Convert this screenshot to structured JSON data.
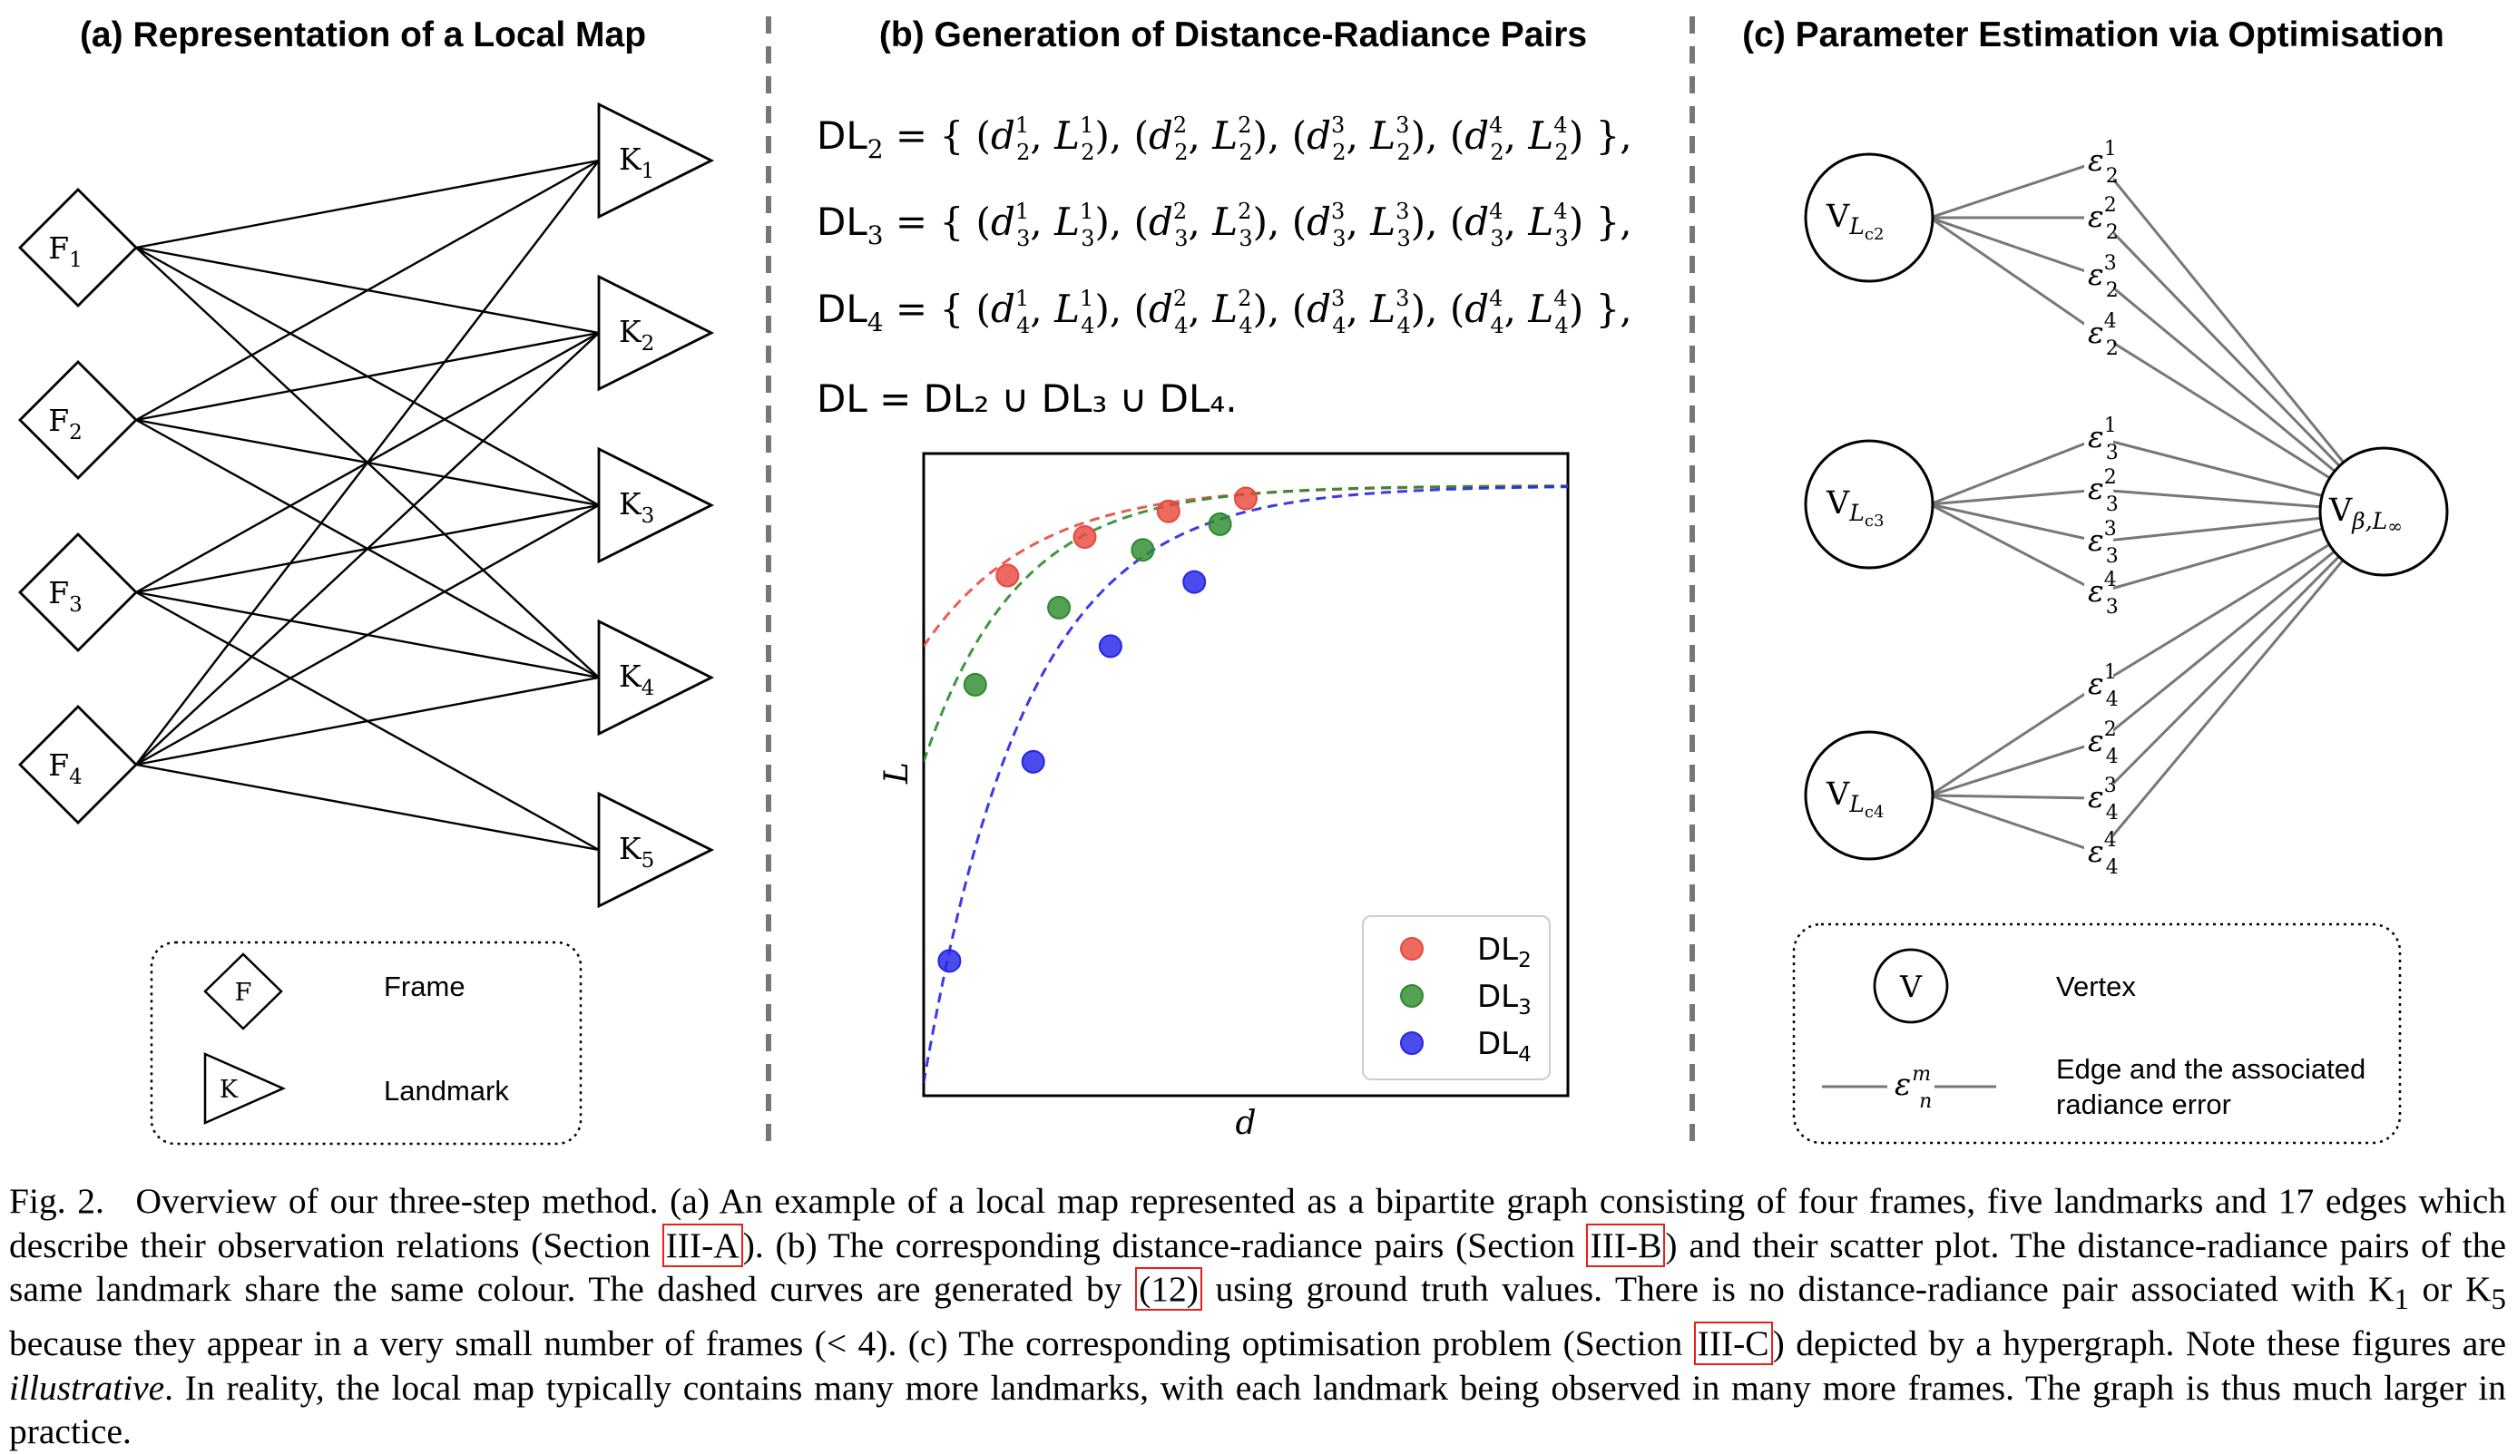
{
  "panel_a": {
    "title": "(a) Representation of a Local Map",
    "frames": [
      "F",
      "F",
      "F",
      "F"
    ],
    "frame_subs": [
      "1",
      "2",
      "3",
      "4"
    ],
    "landmarks": [
      "K",
      "K",
      "K",
      "K",
      "K"
    ],
    "landmark_subs": [
      "1",
      "2",
      "3",
      "4",
      "5"
    ],
    "legend": {
      "frame_symbol": "F",
      "frame_label": "Frame",
      "landmark_symbol": "K",
      "landmark_label": "Landmark"
    }
  },
  "panel_b": {
    "title": "(b) Generation of Distance-Radiance Pairs",
    "equations": [
      {
        "lhs": "DL",
        "sub": "2",
        "idx": "2"
      },
      {
        "lhs": "DL",
        "sub": "3",
        "idx": "3"
      },
      {
        "lhs": "DL",
        "sub": "4",
        "idx": "4"
      }
    ],
    "union_eq": "DL = DL₂ ∪ DL₃ ∪ DL₄."
  },
  "chart_data": {
    "type": "scatter",
    "xlabel": "d",
    "ylabel": "L",
    "x_ticks": "none",
    "y_ticks": "none",
    "legend_placement": "bottom-right",
    "series": [
      {
        "name": "DL",
        "sub": "2",
        "color": "#e8493d",
        "points": [
          [
            0.13,
            0.81
          ],
          [
            0.25,
            0.87
          ],
          [
            0.38,
            0.91
          ],
          [
            0.5,
            0.93
          ]
        ]
      },
      {
        "name": "DL",
        "sub": "3",
        "color": "#2e8b2e",
        "points": [
          [
            0.08,
            0.64
          ],
          [
            0.21,
            0.76
          ],
          [
            0.34,
            0.85
          ],
          [
            0.46,
            0.89
          ]
        ]
      },
      {
        "name": "DL",
        "sub": "4",
        "color": "#2525e8",
        "points": [
          [
            0.04,
            0.21
          ],
          [
            0.17,
            0.52
          ],
          [
            0.29,
            0.7
          ],
          [
            0.42,
            0.8
          ]
        ]
      }
    ]
  },
  "panel_c": {
    "title": "(c) Parameter Estimation via Optimisation",
    "vertices": [
      {
        "main": "V",
        "sub": "L",
        "subsub": "c2"
      },
      {
        "main": "V",
        "sub": "L",
        "subsub": "c3"
      },
      {
        "main": "V",
        "sub": "L",
        "subsub": "c4"
      }
    ],
    "target": {
      "main": "V",
      "sub": "β,L",
      "subsub": "∞"
    },
    "edge_prefix": "ε",
    "legend": {
      "vertex_symbol": "V",
      "vertex_label": "Vertex",
      "edge_symbol": "ε",
      "edge_sup": "m",
      "edge_sub": "n",
      "edge_label_1": "Edge and the associated",
      "edge_label_2": "radiance error"
    }
  },
  "caption": {
    "fig_no": "Fig. 2.",
    "p1": "Overview of our three-step method. (a) An example of a local map represented as a bipartite graph consisting of four frames, five landmarks and 17 edges which describe their observation relations (Section ",
    "ref1": "III-A",
    "p2": "). (b) The corresponding distance-radiance pairs (Section ",
    "ref2": "III-B",
    "p3": ") and their scatter plot. The distance-radiance pairs of the same landmark share the same colour. The dashed curves are generated by ",
    "ref3": "(12)",
    "p4": " using ground truth values. There is no distance-radiance pair associated with K",
    "k1_sub": "1",
    "p5": " or K",
    "k5_sub": "5",
    "p6": " because they appear in a very small number of frames (< 4). (c) The corresponding optimisation problem (Section ",
    "ref4": "III-C",
    "p7": ") depicted by a hypergraph. Note these figures are ",
    "italic": "illustrative",
    "p8": ". In reality, the local map typically contains many more landmarks, with each landmark being observed in many more frames. The graph is thus much larger in practice."
  }
}
